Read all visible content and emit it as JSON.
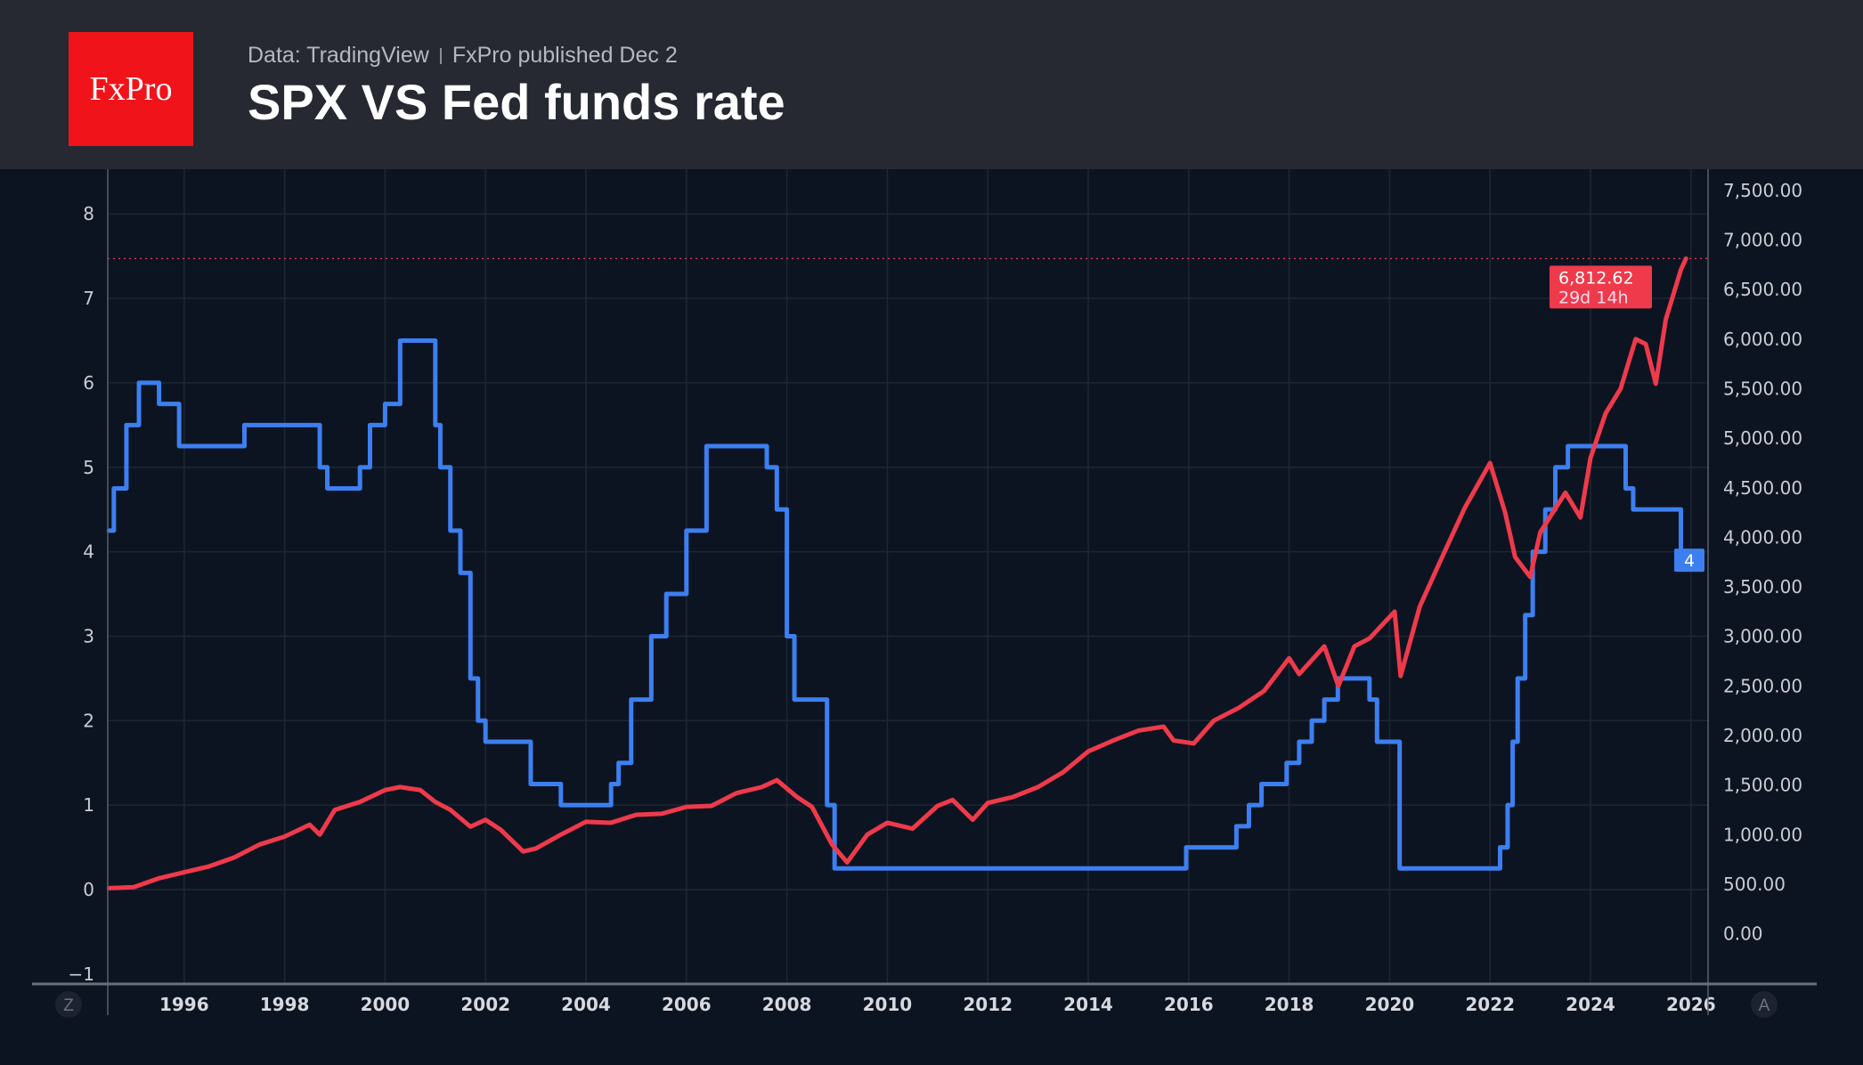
{
  "header": {
    "logo_text": "FxPro",
    "source": "Data: TradingView",
    "published": "FxPro published Dec 2",
    "title": "SPX VS Fed funds rate"
  },
  "axis_buttons": {
    "left": "Z",
    "right": "A"
  },
  "colors": {
    "fed": "#3d7ff0",
    "spx": "#ee3a4b",
    "background": "#0d1421",
    "header": "#262932",
    "logo": "#f0141a"
  },
  "price_label": {
    "value": "6,812.62",
    "countdown": "29d 14h"
  },
  "fed_label": "4",
  "chart_data": {
    "type": "line",
    "title": "SPX VS Fed funds rate",
    "x_ticks": [
      "1996",
      "1998",
      "2000",
      "2002",
      "2004",
      "2006",
      "2008",
      "2010",
      "2012",
      "2014",
      "2016",
      "2018",
      "2020",
      "2022",
      "2024",
      "2026"
    ],
    "left_axis": {
      "ticks": [
        "8",
        "7",
        "6",
        "5",
        "4",
        "3",
        "2",
        "1",
        "0",
        "−1"
      ],
      "range": [
        -1,
        8.4
      ]
    },
    "right_axis": {
      "ticks": [
        "7,500.00",
        "7,000.00",
        "6,500.00",
        "6,000.00",
        "5,500.00",
        "5,000.00",
        "4,500.00",
        "4,000.00",
        "3,500.00",
        "3,000.00",
        "2,500.00",
        "2,000.00",
        "1,500.00",
        "1,000.00",
        "500.00",
        "0.00"
      ],
      "range": [
        0,
        7500
      ]
    },
    "x_range": [
      1994.5,
      2026.3
    ],
    "grid": true,
    "series": [
      {
        "axis": "left",
        "color": "#3d7ff0",
        "step": true,
        "x": [
          1994.5,
          1994.6,
          1994.85,
          1995.1,
          1995.5,
          1995.9,
          1997.2,
          1998.7,
          1998.85,
          1999.5,
          1999.7,
          2000.0,
          2000.3,
          2001.0,
          2001.1,
          2001.3,
          2001.5,
          2001.7,
          2001.85,
          2002.0,
          2002.9,
          2003.5,
          2004.5,
          2004.65,
          2004.9,
          2005.3,
          2005.6,
          2006.0,
          2006.4,
          2007.6,
          2007.8,
          2008.0,
          2008.15,
          2008.8,
          2008.95,
          2015.95,
          2016.95,
          2017.2,
          2017.45,
          2017.95,
          2018.2,
          2018.45,
          2018.7,
          2018.97,
          2019.6,
          2019.75,
          2020.2,
          2022.2,
          2022.35,
          2022.45,
          2022.55,
          2022.7,
          2022.85,
          2023.1,
          2023.3,
          2023.55,
          2024.7,
          2024.85,
          2025.8
        ],
        "y": [
          4.25,
          4.75,
          5.5,
          6.0,
          5.75,
          5.25,
          5.5,
          5.0,
          4.75,
          5.0,
          5.5,
          5.75,
          6.5,
          5.5,
          5.0,
          4.25,
          3.75,
          2.5,
          2.0,
          1.75,
          1.25,
          1.0,
          1.25,
          1.5,
          2.25,
          3.0,
          3.5,
          4.25,
          5.25,
          5.0,
          4.5,
          3.0,
          2.25,
          1.0,
          0.25,
          0.5,
          0.75,
          1.0,
          1.25,
          1.5,
          1.75,
          2.0,
          2.25,
          2.5,
          2.25,
          1.75,
          0.25,
          0.5,
          1.0,
          1.75,
          2.5,
          3.25,
          4.0,
          4.5,
          5.0,
          5.25,
          4.75,
          4.5,
          3.9
        ]
      },
      {
        "axis": "right",
        "color": "#ee3a4b",
        "x": [
          1994.5,
          1995.0,
          1995.5,
          1996.0,
          1996.5,
          1997.0,
          1997.5,
          1998.0,
          1998.5,
          1998.7,
          1999.0,
          1999.5,
          2000.0,
          2000.3,
          2000.7,
          2001.0,
          2001.3,
          2001.7,
          2002.0,
          2002.3,
          2002.75,
          2003.0,
          2003.5,
          2004.0,
          2004.5,
          2005.0,
          2005.5,
          2006.0,
          2006.5,
          2007.0,
          2007.5,
          2007.8,
          2008.2,
          2008.5,
          2008.9,
          2009.2,
          2009.6,
          2010.0,
          2010.5,
          2011.0,
          2011.3,
          2011.7,
          2012.0,
          2012.5,
          2013.0,
          2013.5,
          2014.0,
          2014.5,
          2015.0,
          2015.5,
          2015.7,
          2016.1,
          2016.5,
          2017.0,
          2017.5,
          2018.0,
          2018.2,
          2018.7,
          2018.98,
          2019.3,
          2019.6,
          2020.1,
          2020.22,
          2020.6,
          2021.0,
          2021.5,
          2022.0,
          2022.3,
          2022.5,
          2022.8,
          2023.0,
          2023.5,
          2023.8,
          2024.0,
          2024.3,
          2024.6,
          2024.9,
          2025.1,
          2025.3,
          2025.5,
          2025.8,
          2025.9
        ],
        "y": [
          460,
          470,
          560,
          620,
          680,
          770,
          900,
          980,
          1100,
          1000,
          1250,
          1330,
          1450,
          1480,
          1450,
          1330,
          1250,
          1080,
          1150,
          1050,
          830,
          860,
          1000,
          1130,
          1120,
          1200,
          1210,
          1280,
          1290,
          1420,
          1480,
          1550,
          1380,
          1280,
          900,
          720,
          1000,
          1120,
          1060,
          1290,
          1350,
          1150,
          1320,
          1380,
          1480,
          1630,
          1840,
          1950,
          2050,
          2090,
          1950,
          1920,
          2150,
          2280,
          2450,
          2780,
          2620,
          2900,
          2500,
          2900,
          2980,
          3250,
          2600,
          3300,
          3750,
          4300,
          4750,
          4250,
          3800,
          3600,
          4050,
          4450,
          4200,
          4800,
          5250,
          5500,
          6000,
          5950,
          5550,
          6200,
          6700,
          6812
        ]
      }
    ]
  }
}
